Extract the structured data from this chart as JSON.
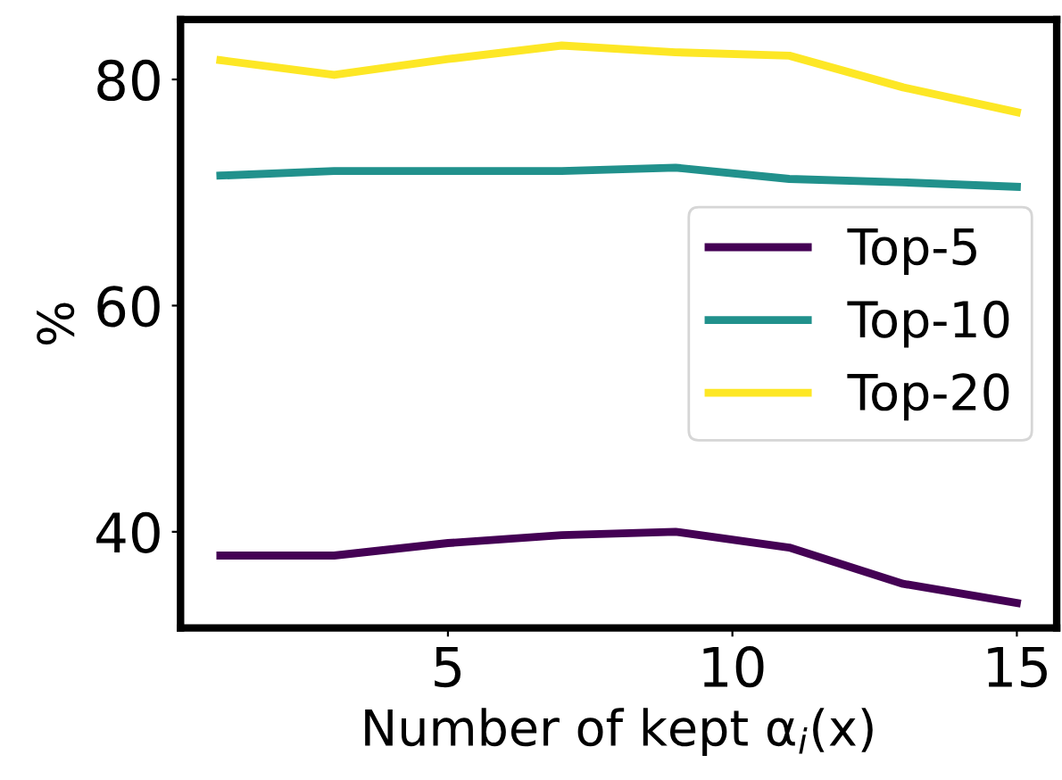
{
  "chart_data": {
    "type": "line",
    "xlabel": "Number of kept α$_{i}$(x)",
    "ylabel": "%",
    "x": [
      1,
      3,
      5,
      7,
      9,
      11,
      13,
      15
    ],
    "series": [
      {
        "name": "Top-5",
        "color": "#440154",
        "values": [
          37.9,
          37.9,
          39.0,
          39.7,
          40.0,
          38.6,
          35.4,
          33.7
        ]
      },
      {
        "name": "Top-10",
        "color": "#21918c",
        "values": [
          71.5,
          71.9,
          71.9,
          71.9,
          72.2,
          71.2,
          70.9,
          70.5
        ]
      },
      {
        "name": "Top-20",
        "color": "#fde725",
        "values": [
          81.7,
          80.4,
          81.8,
          83.0,
          82.4,
          82.1,
          79.3,
          77.1
        ]
      }
    ],
    "xlim": [
      0.3,
      15.7
    ],
    "ylim": [
      31.5,
      85.3
    ],
    "xticks": [
      5,
      10,
      15
    ],
    "yticks": [
      40,
      60,
      80
    ],
    "legend": "center right",
    "grid": false,
    "marker": "none",
    "line_style": "solid"
  }
}
